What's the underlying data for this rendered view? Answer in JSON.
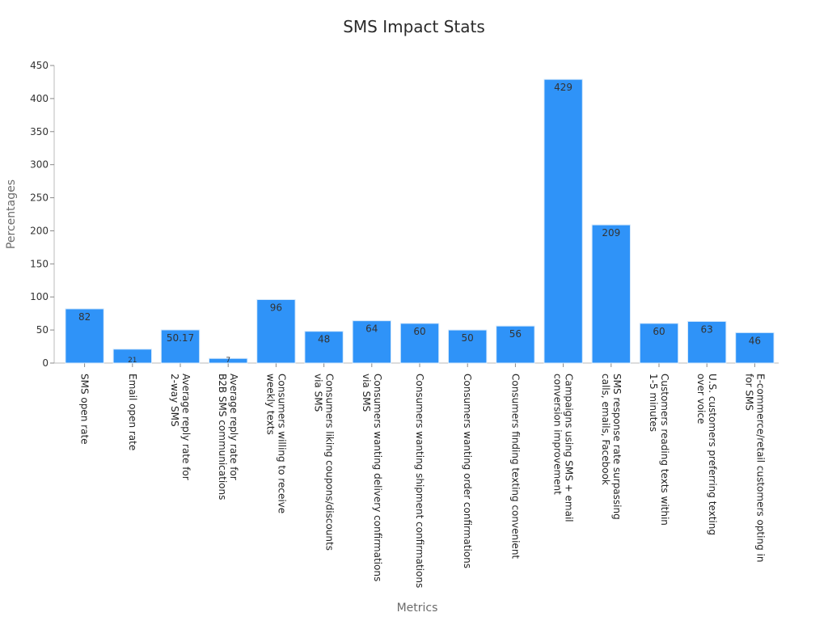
{
  "chart_data": {
    "type": "bar",
    "title": "SMS Impact Stats",
    "xlabel": "Metrics",
    "ylabel": "Percentages",
    "ylim": [
      0,
      450
    ],
    "yticks": [
      0,
      50,
      100,
      150,
      200,
      250,
      300,
      350,
      400,
      450
    ],
    "grid": false,
    "bar_color": "#2f93f8",
    "bar_edge_color": "#d6e9fb",
    "categories": [
      [
        "SMS open rate"
      ],
      [
        "Email open rate"
      ],
      [
        "Average reply rate for",
        "2-way SMS"
      ],
      [
        "Average reply rate for",
        "B2B SMS communications"
      ],
      [
        "Consumers willing to receive",
        "weekly texts"
      ],
      [
        "Consumers liking coupons/discounts",
        "via SMS"
      ],
      [
        "Consumers wanting delivery confirmations",
        "via SMS"
      ],
      [
        "Consumers wanting shipment confirmations"
      ],
      [
        "Consumers wanting order confirmations"
      ],
      [
        "Consumers finding texting convenient"
      ],
      [
        "Campaigns using SMS + email",
        "conversion improvement"
      ],
      [
        "SMS response rate surpassing",
        "calls, emails, Facebook"
      ],
      [
        "Customers reading texts within",
        "1-5 minutes"
      ],
      [
        "U.S. customers preferring texting",
        "over voice"
      ],
      [
        "E-commerce/retail customers opting in",
        "for SMS"
      ]
    ],
    "values": [
      82,
      21,
      50.17,
      7,
      96,
      48,
      64,
      60,
      50,
      56,
      429,
      209,
      60,
      63,
      46
    ],
    "value_labels": [
      "82",
      "21",
      "50.17",
      "7",
      "96",
      "48",
      "64",
      "60",
      "50",
      "56",
      "429",
      "209",
      "60",
      "63",
      "46"
    ]
  }
}
